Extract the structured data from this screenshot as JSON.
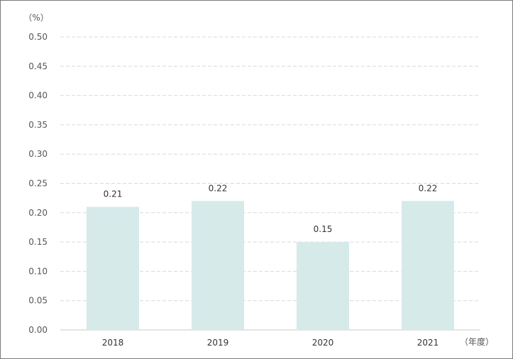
{
  "chart_data": {
    "type": "bar",
    "title": "",
    "y_unit_label": "（%）",
    "x_unit_label": "（年度）",
    "categories": [
      "2018",
      "2019",
      "2020",
      "2021"
    ],
    "values": [
      0.21,
      0.22,
      0.15,
      0.22
    ],
    "data_labels": [
      "0.21",
      "0.22",
      "0.15",
      "0.22"
    ],
    "ylim": [
      0,
      0.5
    ],
    "yticks": [
      "0.00",
      "0.05",
      "0.10",
      "0.15",
      "0.20",
      "0.25",
      "0.30",
      "0.35",
      "0.40",
      "0.45",
      "0.50"
    ],
    "grid": true,
    "legend": "none",
    "colors": {
      "bar": "#d6eaea",
      "grid": "#d9d9d9",
      "axis": "#c8c8c8"
    }
  }
}
